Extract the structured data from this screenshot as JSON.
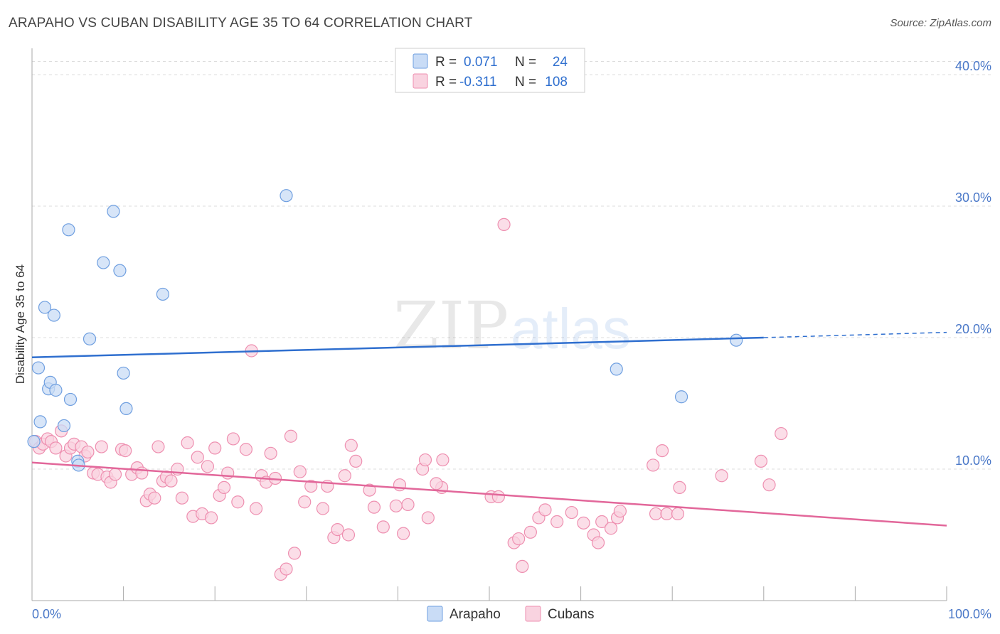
{
  "title": "ARAPAHO VS CUBAN DISABILITY AGE 35 TO 64 CORRELATION CHART",
  "source": "Source: ZipAtlas.com",
  "watermark": {
    "zip": "ZIP",
    "atlas": "atlas"
  },
  "colors": {
    "arapaho": "#6f9fe0",
    "arapaho_fill": "#c9dcf6",
    "arapaho_line": "#2f6fcf",
    "cubans": "#ee8fb0",
    "cubans_fill": "#f9d3e0",
    "cubans_line": "#e2679a",
    "tick_text": "#4a78c8",
    "grid": "#dddddd"
  },
  "legend_top": [
    {
      "series": "arapaho",
      "r_label": "R =",
      "r_value": "0.071",
      "n_label": "N =",
      "n_value": "24"
    },
    {
      "series": "cubans",
      "r_label": "R =",
      "r_value": "-0.311",
      "n_label": "N =",
      "n_value": "108"
    }
  ],
  "legend_bottom": [
    "Arapaho",
    "Cubans"
  ],
  "chart_data": {
    "type": "scatter",
    "title": "ARAPAHO VS CUBAN DISABILITY AGE 35 TO 64 CORRELATION CHART",
    "xlabel": "",
    "ylabel": "Disability Age 35 to 64",
    "xlim": [
      0,
      100
    ],
    "ylim": [
      0,
      42
    ],
    "x_tick_labels": [
      "0.0%",
      "100.0%"
    ],
    "y_ticks": [
      10,
      20,
      30,
      40
    ],
    "y_tick_labels": [
      "10.0%",
      "20.0%",
      "30.0%",
      "40.0%"
    ],
    "grid": true,
    "legend_position": "top-center",
    "series": [
      {
        "name": "Arapaho",
        "r": 0.071,
        "n": 24,
        "trend": {
          "x": [
            0,
            80
          ],
          "y": [
            18.5,
            20.0
          ],
          "dashed_to": [
            100,
            20.4
          ]
        },
        "points": [
          [
            0.2,
            12.1
          ],
          [
            0.7,
            17.7
          ],
          [
            0.9,
            13.6
          ],
          [
            1.4,
            22.3
          ],
          [
            1.8,
            16.1
          ],
          [
            2.0,
            16.6
          ],
          [
            2.4,
            21.7
          ],
          [
            2.6,
            16.0
          ],
          [
            3.5,
            13.3
          ],
          [
            4.0,
            28.2
          ],
          [
            4.2,
            15.3
          ],
          [
            5.0,
            10.6
          ],
          [
            5.1,
            10.3
          ],
          [
            6.3,
            19.9
          ],
          [
            7.8,
            25.7
          ],
          [
            8.9,
            29.6
          ],
          [
            9.6,
            25.1
          ],
          [
            10.0,
            17.3
          ],
          [
            10.3,
            14.6
          ],
          [
            14.3,
            23.3
          ],
          [
            27.8,
            30.8
          ],
          [
            63.9,
            17.6
          ],
          [
            71.0,
            15.5
          ],
          [
            77.0,
            19.8
          ]
        ]
      },
      {
        "name": "Cubans",
        "r": -0.311,
        "n": 108,
        "trend": {
          "x": [
            0,
            100
          ],
          "y": [
            10.5,
            5.7
          ]
        },
        "points": [
          [
            0.4,
            12.1
          ],
          [
            0.8,
            11.6
          ],
          [
            1.2,
            11.9
          ],
          [
            1.7,
            12.3
          ],
          [
            2.1,
            12.1
          ],
          [
            2.6,
            11.6
          ],
          [
            3.2,
            12.9
          ],
          [
            3.7,
            11.0
          ],
          [
            4.2,
            11.6
          ],
          [
            4.6,
            11.9
          ],
          [
            5.4,
            11.7
          ],
          [
            5.8,
            11.0
          ],
          [
            6.1,
            11.3
          ],
          [
            6.7,
            9.7
          ],
          [
            7.2,
            9.6
          ],
          [
            7.6,
            11.7
          ],
          [
            8.2,
            9.4
          ],
          [
            8.6,
            9.0
          ],
          [
            9.1,
            9.6
          ],
          [
            9.8,
            11.5
          ],
          [
            10.2,
            11.4
          ],
          [
            10.9,
            9.6
          ],
          [
            11.5,
            10.1
          ],
          [
            12.0,
            9.7
          ],
          [
            12.5,
            7.6
          ],
          [
            12.9,
            8.1
          ],
          [
            13.4,
            7.8
          ],
          [
            13.8,
            11.7
          ],
          [
            14.3,
            9.1
          ],
          [
            14.7,
            9.4
          ],
          [
            15.2,
            9.1
          ],
          [
            15.9,
            10.0
          ],
          [
            16.4,
            7.8
          ],
          [
            17.0,
            12.0
          ],
          [
            17.6,
            6.4
          ],
          [
            18.1,
            10.9
          ],
          [
            18.6,
            6.6
          ],
          [
            19.2,
            10.2
          ],
          [
            19.6,
            6.3
          ],
          [
            20.0,
            11.6
          ],
          [
            20.5,
            8.0
          ],
          [
            21.0,
            8.6
          ],
          [
            21.4,
            9.7
          ],
          [
            22.0,
            12.3
          ],
          [
            22.5,
            7.5
          ],
          [
            23.4,
            11.5
          ],
          [
            24.0,
            19.0
          ],
          [
            24.5,
            7.0
          ],
          [
            25.1,
            9.5
          ],
          [
            25.6,
            9.0
          ],
          [
            26.1,
            11.2
          ],
          [
            26.6,
            9.3
          ],
          [
            27.2,
            2.0
          ],
          [
            27.8,
            2.4
          ],
          [
            28.3,
            12.5
          ],
          [
            28.7,
            3.6
          ],
          [
            29.3,
            9.8
          ],
          [
            29.8,
            7.5
          ],
          [
            30.5,
            8.7
          ],
          [
            31.8,
            7.0
          ],
          [
            32.3,
            8.7
          ],
          [
            33.0,
            4.8
          ],
          [
            33.4,
            5.4
          ],
          [
            34.2,
            9.5
          ],
          [
            34.6,
            5.0
          ],
          [
            34.9,
            11.8
          ],
          [
            35.4,
            10.6
          ],
          [
            36.9,
            8.4
          ],
          [
            37.4,
            7.1
          ],
          [
            38.4,
            5.6
          ],
          [
            39.8,
            7.2
          ],
          [
            40.2,
            8.8
          ],
          [
            40.6,
            5.1
          ],
          [
            41.1,
            7.3
          ],
          [
            42.7,
            10.0
          ],
          [
            43.0,
            10.7
          ],
          [
            43.3,
            6.3
          ],
          [
            44.8,
            8.6
          ],
          [
            44.2,
            8.9
          ],
          [
            44.9,
            10.7
          ],
          [
            50.2,
            7.9
          ],
          [
            51.0,
            7.9
          ],
          [
            51.6,
            28.6
          ],
          [
            52.7,
            4.4
          ],
          [
            53.2,
            4.7
          ],
          [
            53.6,
            2.6
          ],
          [
            54.5,
            5.2
          ],
          [
            55.4,
            6.3
          ],
          [
            56.1,
            6.9
          ],
          [
            57.4,
            6.0
          ],
          [
            59.0,
            6.7
          ],
          [
            60.3,
            5.9
          ],
          [
            61.4,
            5.0
          ],
          [
            61.9,
            4.4
          ],
          [
            62.3,
            6.0
          ],
          [
            63.3,
            5.5
          ],
          [
            64.0,
            6.3
          ],
          [
            64.3,
            6.8
          ],
          [
            67.9,
            10.3
          ],
          [
            68.9,
            11.4
          ],
          [
            68.2,
            6.6
          ],
          [
            69.4,
            6.6
          ],
          [
            70.6,
            6.6
          ],
          [
            70.8,
            8.6
          ],
          [
            75.4,
            9.5
          ],
          [
            79.7,
            10.6
          ],
          [
            80.6,
            8.8
          ],
          [
            81.9,
            12.7
          ]
        ]
      }
    ]
  }
}
